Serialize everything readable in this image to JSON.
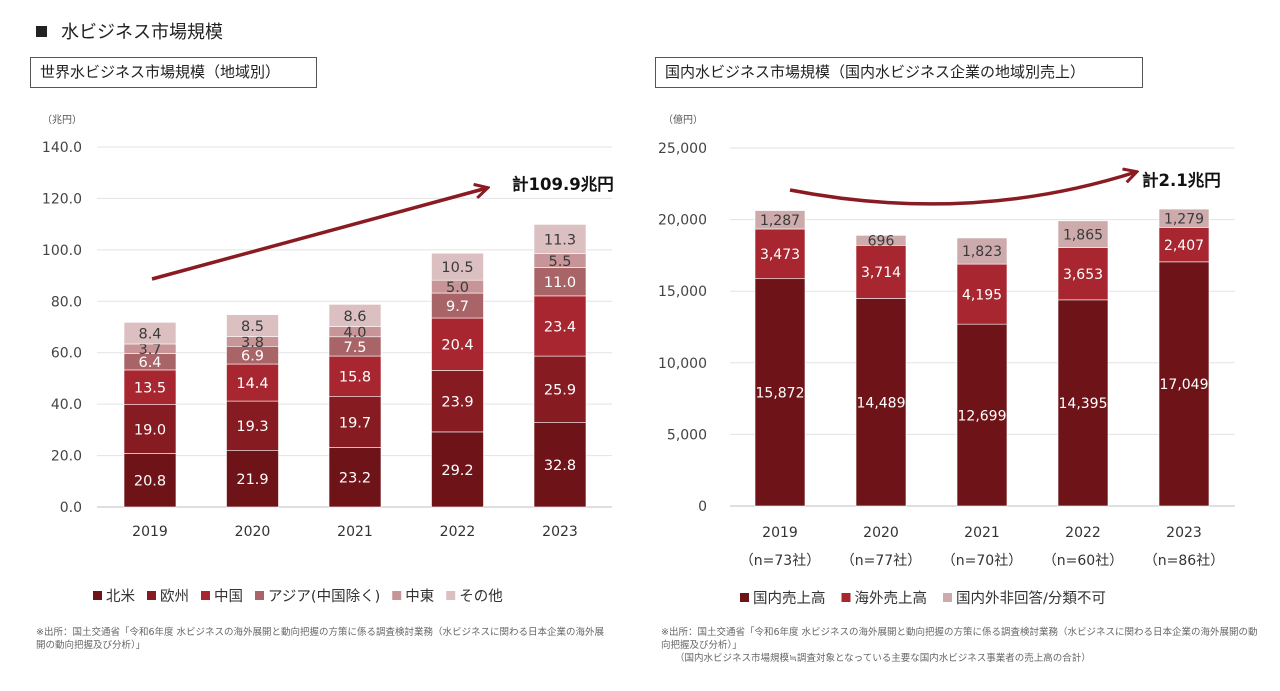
{
  "page": {
    "title": "水ビジネス市場規模"
  },
  "left": {
    "box_title": "世界水ビジネス市場規模（地域別）",
    "source": "※出所：国土交通省「令和6年度 水ビジネスの海外展開と動向把握の方策に係る調査検討業務（水ビジネスに関わる日本企業の海外展開の動向把握及び分析）」"
  },
  "right": {
    "box_title": "国内水ビジネス市場規模（国内水ビジネス企業の地域別売上）",
    "source_1": "※出所：国土交通省「令和6年度 水ビジネスの海外展開と動向把握の方策に係る調査検討業務（水ビジネスに関わる日本企業の海外展開の動向把握及び分析）」",
    "source_2": "（国内水ビジネス市場規模≒調査対象となっている主要な国内水ビジネス事業者の売上高の合計）"
  },
  "chart_data": [
    {
      "type": "bar",
      "stacked": true,
      "unit": "（兆円）",
      "categories": [
        "2019",
        "2020",
        "2021",
        "2022",
        "2023"
      ],
      "ylim": [
        0,
        140
      ],
      "yticks": [
        "0.0",
        "20.0",
        "40.0",
        "60.0",
        "80.0",
        "100.0",
        "120.0",
        "140.0"
      ],
      "grid": true,
      "legend_position": "bottom",
      "series": [
        {
          "name": "北米",
          "color": "#6e1419",
          "values": [
            20.8,
            21.9,
            23.2,
            29.2,
            32.8
          ],
          "labels": [
            "20.8",
            "21.9",
            "23.2",
            "29.2",
            "32.8"
          ]
        },
        {
          "name": "欧州",
          "color": "#861b22",
          "values": [
            19.0,
            19.3,
            19.7,
            23.9,
            25.9
          ],
          "labels": [
            "19.0",
            "19.3",
            "19.7",
            "23.9",
            "25.9"
          ]
        },
        {
          "name": "中国",
          "color": "#a7262f",
          "values": [
            13.5,
            14.4,
            15.8,
            20.4,
            23.4
          ],
          "labels": [
            "13.5",
            "14.4",
            "15.8",
            "20.4",
            "23.4"
          ]
        },
        {
          "name": "アジア(中国除く)",
          "color": "#a96468",
          "values": [
            6.4,
            6.9,
            7.5,
            9.7,
            11.0
          ],
          "labels": [
            "6.4",
            "6.9",
            "7.5",
            "9.7",
            "11.0"
          ]
        },
        {
          "name": "中東",
          "color": "#c79597",
          "values": [
            3.7,
            3.8,
            4.0,
            5.0,
            5.5
          ],
          "labels": [
            "3.7",
            "3.8",
            "4.0",
            "5.0",
            "5.5"
          ]
        },
        {
          "name": "その他",
          "color": "#dcc0c1",
          "values": [
            8.4,
            8.5,
            8.6,
            10.5,
            11.3
          ],
          "labels": [
            "8.4",
            "8.5",
            "8.6",
            "10.5",
            "11.3"
          ]
        }
      ],
      "annotation": "計109.9兆円",
      "arrow_color": "#8b1b22"
    },
    {
      "type": "bar",
      "stacked": true,
      "unit": "（億円）",
      "categories": [
        "2019",
        "2020",
        "2021",
        "2022",
        "2023"
      ],
      "sublabels": [
        "（n=73社）",
        "（n=77社）",
        "（n=70社）",
        "（n=60社）",
        "（n=86社）"
      ],
      "ylim": [
        0,
        25000
      ],
      "yticks": [
        "0",
        "5,000",
        "10,000",
        "15,000",
        "20,000",
        "25,000"
      ],
      "grid": true,
      "legend_position": "bottom",
      "series": [
        {
          "name": "国内売上高",
          "color": "#6e1419",
          "values": [
            15872,
            14489,
            12699,
            14395,
            17049
          ],
          "labels": [
            "15,872",
            "14,489",
            "12,699",
            "14,395",
            "17,049"
          ]
        },
        {
          "name": "海外売上高",
          "color": "#a7262f",
          "values": [
            3473,
            3714,
            4195,
            3653,
            2407
          ],
          "labels": [
            "3,473",
            "3,714",
            "4,195",
            "3,653",
            "2,407"
          ]
        },
        {
          "name": "国内外非回答/分類不可",
          "color": "#cdaaab",
          "values": [
            1287,
            696,
            1823,
            1865,
            1279
          ],
          "labels": [
            "1,287",
            "696",
            "1,823",
            "1,865",
            "1,279"
          ]
        }
      ],
      "annotation": "計2.1兆円",
      "arrow_color": "#8b1b22"
    }
  ]
}
